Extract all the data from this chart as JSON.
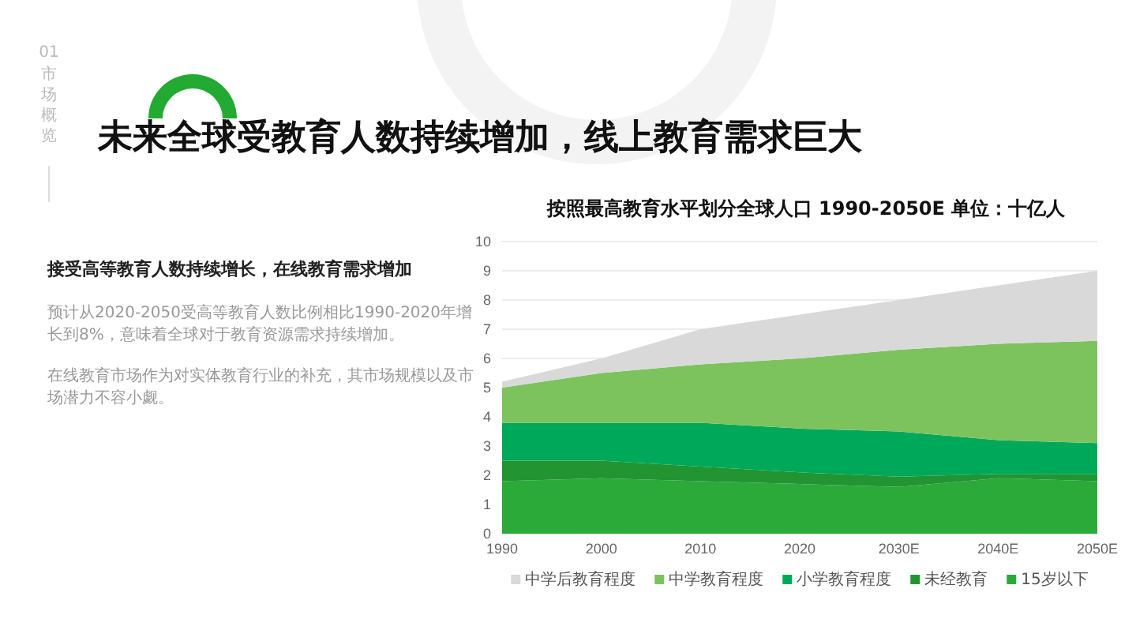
{
  "chart_data": {
    "type": "area",
    "title": "未来全球受教育人数持续增加，线上教育需求巨大",
    "subtitle": "按照最高教育水平划分全球人口 1990-2050E 单位：十亿人",
    "annotations": [
      "01",
      "市场概览",
      "接受高等教育人数持续增长，在线教育需求增加",
      "预计从2020-2050受高等教育人数比例相比1990-2020年增长到8%，意味着全球对于教育资源需求持续增加。",
      "在线教育市场作为对实体教育行业的补充，其市场规模以及市场潜力不容小觑。"
    ],
    "categories": [
      "1990",
      "2000",
      "2010",
      "2020",
      "2030E",
      "2040E",
      "2050E"
    ],
    "stacked": true,
    "series": [
      {
        "name": "15岁以下",
        "color": "#2baa3a",
        "values": [
          1.8,
          1.9,
          1.8,
          1.7,
          1.6,
          1.9,
          1.8
        ]
      },
      {
        "name": "未经教育",
        "color": "#229432",
        "values": [
          0.7,
          0.6,
          0.5,
          0.4,
          0.35,
          0.15,
          0.25
        ]
      },
      {
        "name": "小学教育程度",
        "color": "#00a85a",
        "values": [
          1.3,
          1.3,
          1.5,
          1.5,
          1.55,
          1.15,
          1.05
        ]
      },
      {
        "name": "中学教育程度",
        "color": "#7cc35e",
        "values": [
          1.2,
          1.7,
          2.0,
          2.4,
          2.8,
          3.3,
          3.5
        ]
      },
      {
        "name": "中学后教育程度",
        "color": "#d9d9d9",
        "values": [
          0.2,
          0.5,
          1.2,
          1.5,
          1.7,
          2.0,
          2.4
        ]
      }
    ],
    "ylim": [
      0,
      10
    ],
    "yticks": [
      0,
      1,
      2,
      3,
      4,
      5,
      6,
      7,
      8,
      9,
      10
    ],
    "grid": "y",
    "legend": "bottom"
  }
}
